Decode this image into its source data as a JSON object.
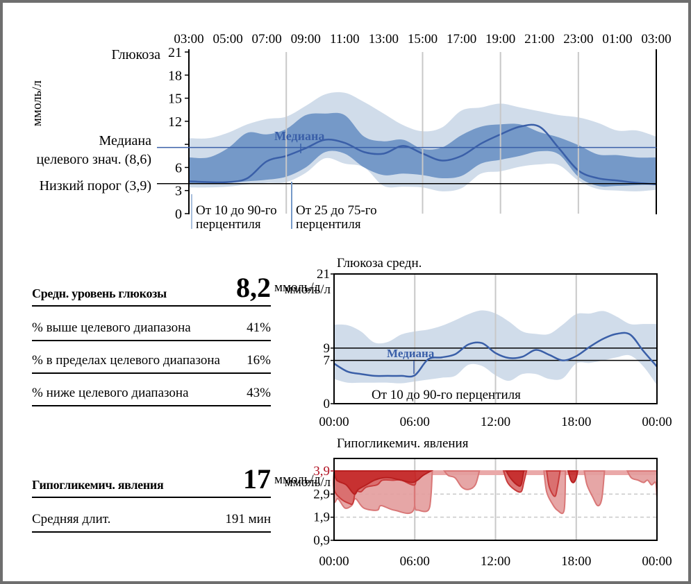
{
  "colors": {
    "band_outer": "#d0dcea",
    "band_inner": "#7599c8",
    "median": "#3a5fa8",
    "target_line": "#3a5fa8",
    "grid": "#c8c8c8",
    "hypo_light": "#e39c9c",
    "hypo_mid": "#d86a6a",
    "hypo_dark": "#c42a2a",
    "hypo_label": "#b01020"
  },
  "stats": {
    "avg_glucose": {
      "label": "Средн. уровень глюкозы",
      "value": "8,2",
      "unit": "ммоль/л"
    },
    "above": {
      "label": "% выше целевого диапазона",
      "value": "41%"
    },
    "within": {
      "label": "% в пределах целевого диапазона",
      "value": "16%"
    },
    "below": {
      "label": "% ниже целевого диапазона",
      "value": "43%"
    },
    "hypo_events": {
      "label": "Гипогликемич. явления",
      "value": "17",
      "unit": "ммоль/л"
    },
    "avg_duration": {
      "label": "Средняя длит.",
      "value": "191 мин"
    }
  },
  "chart_data": [
    {
      "type": "area",
      "title": "Глюкоза",
      "ylabel": "ммоль/л",
      "ylim": [
        0,
        21
      ],
      "yticks": [
        "0",
        "3",
        "6",
        "",
        "12",
        "15",
        "18",
        "21"
      ],
      "ytick_values": [
        0,
        3,
        6,
        9,
        12,
        15,
        18,
        21
      ],
      "x_hours_range": [
        3,
        27
      ],
      "xticks": [
        "03:00",
        "05:00",
        "07:00",
        "09:00",
        "11:00",
        "13:00",
        "15:00",
        "17:00",
        "19:00",
        "21:00",
        "23:00",
        "01:00",
        "03:00"
      ],
      "grid_hours": [
        8,
        15,
        19,
        23
      ],
      "target_median": {
        "label": "Медиана целевого знач. (8,6)",
        "label_line1": "Медиана",
        "label_line2": "целевого знач. (8,6)",
        "value": 8.6
      },
      "low_threshold": {
        "label": "Низкий порог (3,9)",
        "value": 3.9
      },
      "annotations": {
        "median": "Медиана",
        "p10_90_line1": "От 10 до 90-го",
        "p10_90_line2": "перцентиля",
        "p25_75_line1": "От 25 до 75-го",
        "p25_75_line2": "перцентиля"
      },
      "x": [
        3,
        4,
        5,
        6,
        7,
        8,
        9,
        10,
        11,
        12,
        13,
        14,
        15,
        16,
        17,
        18,
        19,
        20,
        21,
        22,
        23,
        24,
        25,
        26,
        27
      ],
      "series": [
        {
          "name": "p10",
          "values": [
            3.4,
            3.4,
            3.5,
            3.8,
            4.0,
            4.1,
            5.3,
            7.2,
            6.5,
            6.0,
            3.6,
            3.5,
            3.4,
            2.9,
            3.3,
            5.2,
            5.5,
            6.1,
            6.4,
            6.3,
            4.3,
            3.2,
            3.0,
            2.9,
            3.1
          ]
        },
        {
          "name": "p25",
          "values": [
            3.9,
            3.9,
            4.0,
            4.2,
            4.4,
            4.8,
            6.0,
            8.0,
            7.8,
            6.0,
            5.0,
            5.2,
            5.0,
            4.6,
            4.9,
            6.5,
            7.0,
            7.5,
            8.1,
            7.7,
            4.8,
            3.6,
            3.6,
            3.7,
            3.8
          ]
        },
        {
          "name": "median",
          "values": [
            4.2,
            4.1,
            4.1,
            4.6,
            6.8,
            7.5,
            8.5,
            9.6,
            9.2,
            8.0,
            7.8,
            8.8,
            7.8,
            6.9,
            7.5,
            9.1,
            10.3,
            11.3,
            11.3,
            8.5,
            5.6,
            4.6,
            4.3,
            4.0,
            3.8
          ]
        },
        {
          "name": "p75",
          "values": [
            7.3,
            7.3,
            8.5,
            10.5,
            10.3,
            11.0,
            12.8,
            13.0,
            12.8,
            10.0,
            9.4,
            9.6,
            8.4,
            8.6,
            10.2,
            11.3,
            11.6,
            11.6,
            10.6,
            9.9,
            8.9,
            7.7,
            7.6,
            7.3,
            7.3
          ]
        },
        {
          "name": "p90",
          "values": [
            9.8,
            9.8,
            10.5,
            11.6,
            12.3,
            12.6,
            14.0,
            15.5,
            15.7,
            14.5,
            13.0,
            11.5,
            10.7,
            11.2,
            13.4,
            13.8,
            14.3,
            13.8,
            13.3,
            12.8,
            12.5,
            11.8,
            10.8,
            10.8,
            10.0
          ]
        }
      ]
    },
    {
      "type": "area",
      "title": "Глюкоза средн.",
      "ylabel": "ммоль/л",
      "ylim": [
        0,
        21
      ],
      "yticks": [
        "0",
        "7",
        "9",
        "21"
      ],
      "ytick_values": [
        0,
        7,
        9,
        21
      ],
      "xticks": [
        "00:00",
        "06:00",
        "12:00",
        "18:00",
        "00:00"
      ],
      "x_hours_range": [
        0,
        24
      ],
      "target_range": [
        7,
        9
      ],
      "annotations": {
        "median": "Медиана",
        "p10_90": "От 10 до 90-го перцентиля"
      },
      "x": [
        0,
        1,
        2,
        3,
        4,
        5,
        6,
        7,
        8,
        9,
        10,
        11,
        12,
        13,
        14,
        15,
        16,
        17,
        18,
        19,
        20,
        21,
        22,
        23,
        24
      ],
      "series": [
        {
          "name": "p10",
          "values": [
            4.0,
            3.4,
            3.4,
            3.4,
            3.4,
            3.3,
            3.6,
            3.9,
            4.2,
            4.5,
            6.3,
            6.1,
            4.6,
            3.7,
            4.8,
            4.8,
            4.0,
            4.1,
            6.5,
            6.6,
            7.0,
            7.5,
            7.8,
            6.0,
            3.0
          ]
        },
        {
          "name": "p50",
          "values": [
            6.5,
            5.2,
            4.8,
            4.5,
            4.5,
            4.5,
            4.6,
            7.2,
            7.5,
            8.0,
            9.6,
            9.8,
            8.2,
            7.4,
            7.6,
            8.7,
            7.9,
            7.0,
            7.7,
            9.2,
            10.5,
            11.3,
            11.2,
            8.5,
            6.0
          ]
        },
        {
          "name": "p90",
          "values": [
            12.8,
            12.7,
            11.7,
            9.9,
            10.0,
            11.2,
            11.7,
            12.0,
            12.6,
            13.5,
            14.5,
            15.1,
            14.6,
            13.3,
            11.7,
            11.3,
            11.3,
            12.8,
            14.5,
            14.6,
            15.0,
            14.1,
            12.9,
            12.9,
            12.9
          ]
        }
      ]
    },
    {
      "type": "area",
      "title": "Гипогликемич. явления",
      "ylabel": "ммоль/л",
      "ylim": [
        0.9,
        3.9
      ],
      "yticks": [
        "0,9",
        "1,9",
        "2,9",
        "3,9"
      ],
      "ytick_values": [
        0.9,
        1.9,
        2.9,
        3.9
      ],
      "threshold_label": "3,9",
      "dashed_lines": [
        1.9,
        2.9
      ],
      "xticks": [
        "00:00",
        "06:00",
        "12:00",
        "18:00",
        "00:00"
      ],
      "x_hours_range": [
        0,
        24
      ],
      "events": [
        {
          "shade": "light",
          "points": [
            [
              0,
              3.9
            ],
            [
              0,
              2.6
            ],
            [
              0.3,
              2.7
            ],
            [
              0.8,
              2.3
            ],
            [
              1.3,
              2.4
            ],
            [
              1.6,
              2.7
            ],
            [
              2.2,
              2.3
            ],
            [
              3.2,
              2.2
            ],
            [
              3.5,
              2.4
            ],
            [
              4.5,
              2.2
            ],
            [
              5.9,
              2.2
            ],
            [
              6.0,
              3.9
            ]
          ]
        },
        {
          "shade": "light",
          "points": [
            [
              6.0,
              3.9
            ],
            [
              6.0,
              2.4
            ],
            [
              6.3,
              2.2
            ],
            [
              7.0,
              2.2
            ],
            [
              7.2,
              2.8
            ],
            [
              7.3,
              3.9
            ]
          ]
        },
        {
          "shade": "mid",
          "points": [
            [
              0,
              3.9
            ],
            [
              0,
              3.1
            ],
            [
              0.5,
              2.7
            ],
            [
              1.1,
              2.5
            ],
            [
              1.4,
              2.5
            ],
            [
              1.6,
              3.0
            ],
            [
              2.0,
              3.0
            ],
            [
              2.4,
              3.2
            ],
            [
              3.2,
              3.3
            ],
            [
              3.6,
              3.5
            ],
            [
              4.4,
              3.5
            ],
            [
              5.0,
              3.5
            ],
            [
              6.0,
              3.3
            ],
            [
              6.0,
              3.9
            ]
          ]
        },
        {
          "shade": "dark",
          "points": [
            [
              0,
              3.9
            ],
            [
              0.2,
              3.5
            ],
            [
              0.9,
              3.3
            ],
            [
              1.5,
              2.9
            ],
            [
              1.8,
              3.1
            ],
            [
              2.4,
              3.3
            ],
            [
              3.0,
              3.5
            ],
            [
              3.6,
              3.6
            ],
            [
              4.2,
              3.6
            ],
            [
              5.0,
              3.5
            ],
            [
              5.8,
              3.4
            ],
            [
              6.2,
              3.5
            ],
            [
              6.6,
              3.7
            ],
            [
              7.2,
              3.9
            ]
          ]
        },
        {
          "shade": "light",
          "points": [
            [
              8.2,
              3.9
            ],
            [
              8.5,
              3.7
            ],
            [
              9.0,
              3.6
            ],
            [
              9.5,
              3.2
            ],
            [
              10.0,
              3.1
            ],
            [
              10.5,
              3.3
            ],
            [
              10.8,
              3.9
            ]
          ]
        },
        {
          "shade": "mid",
          "points": [
            [
              12.6,
              3.9
            ],
            [
              12.9,
              3.4
            ],
            [
              13.4,
              3.1
            ],
            [
              13.9,
              3.0
            ],
            [
              14.1,
              3.4
            ],
            [
              14.3,
              3.9
            ]
          ]
        },
        {
          "shade": "dark",
          "points": [
            [
              12.8,
              3.9
            ],
            [
              13.1,
              3.6
            ],
            [
              13.6,
              3.3
            ],
            [
              13.9,
              3.3
            ],
            [
              14.1,
              3.9
            ]
          ]
        },
        {
          "shade": "light",
          "points": [
            [
              15.6,
              3.9
            ],
            [
              15.8,
              3.0
            ],
            [
              16.2,
              2.5
            ],
            [
              16.6,
              2.2
            ],
            [
              17.1,
              2.2
            ],
            [
              17.2,
              3.9
            ]
          ]
        },
        {
          "shade": "mid",
          "points": [
            [
              15.8,
              3.9
            ],
            [
              16.0,
              3.2
            ],
            [
              16.4,
              2.8
            ],
            [
              16.6,
              3.2
            ],
            [
              16.8,
              3.9
            ]
          ]
        },
        {
          "shade": "dark",
          "points": [
            [
              17.4,
              3.9
            ],
            [
              17.6,
              3.5
            ],
            [
              17.8,
              3.4
            ],
            [
              18.0,
              3.6
            ],
            [
              18.1,
              3.9
            ]
          ]
        },
        {
          "shade": "light",
          "points": [
            [
              18.6,
              3.9
            ],
            [
              18.8,
              3.3
            ],
            [
              19.2,
              2.8
            ],
            [
              19.6,
              2.4
            ],
            [
              19.9,
              2.7
            ],
            [
              20.1,
              3.9
            ]
          ]
        },
        {
          "shade": "light",
          "points": [
            [
              21.8,
              3.9
            ],
            [
              22.1,
              3.6
            ],
            [
              22.6,
              3.5
            ],
            [
              23.0,
              3.4
            ],
            [
              23.3,
              3.5
            ],
            [
              23.6,
              3.3
            ],
            [
              23.9,
              3.4
            ],
            [
              24.0,
              2.8
            ],
            [
              24.0,
              3.9
            ]
          ]
        }
      ]
    }
  ]
}
